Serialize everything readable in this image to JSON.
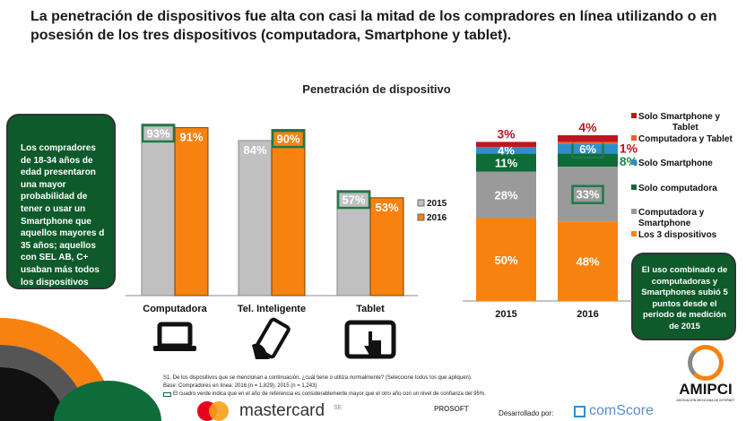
{
  "title": "La penetración de dispositivos fue alta con casi la mitad de los compradores en línea utilizando o en posesión de los tres dispositivos (computadora, Smartphone y tablet).",
  "left_note": "Los compradores de 18-34  años de edad presentaron una mayor probabilidad de tener o usar un Smartphone que aquellos mayores d 35 años; aquellos con SEL AB, C+ usaban más todos los dispositivos que sus contrapartes.",
  "right_note": "El uso combinado de computadoras y Smartphones subió 5 puntos  desde el periodo de medición de 2015",
  "footnotes": {
    "q": "S1. De los dispositivos que se mencionan a continuación, ¿cuál tiene o utiliza normalmente? (Seleccione todos los que apliquen).",
    "base": "Base: Compradores en línea: 2016 (n = 1,829), 2015 (n = 1,243)",
    "legend": "El cuadro verde indica que en el año de referencia es considerablemente mayor que el otro año con un nivel de confianza del 95%."
  },
  "logos": {
    "mastercard": "mastercard",
    "se": "SE",
    "prosoft": "PROSOFT",
    "dev": "Desarrollado por:",
    "comscore": "comScore",
    "amipci": "AMIPCI",
    "amipci_sub": "ASOCIACIÓN MEXICANA DE INTERNET"
  },
  "chart_data": [
    {
      "type": "bar",
      "title": "Penetración de dispositivo",
      "categories": [
        "Computadora",
        "Tel. Inteligente",
        "Tablet"
      ],
      "ylim": [
        0,
        100
      ],
      "legend": "right",
      "series": [
        {
          "name": "2015",
          "color": "#c0c0c0",
          "values": [
            93,
            84,
            57
          ],
          "significant": [
            true,
            false,
            true
          ]
        },
        {
          "name": "2016",
          "color": "#f7820f",
          "values": [
            91,
            90,
            53
          ],
          "significant": [
            false,
            true,
            false
          ]
        }
      ],
      "icons": [
        "laptop-icon",
        "smartphone-icon",
        "tablet-touch-icon"
      ]
    },
    {
      "type": "bar",
      "stacked": true,
      "categories": [
        "2015",
        "2016"
      ],
      "ylim": [
        0,
        100
      ],
      "legend": "right",
      "series": [
        {
          "name": "Los 3 dispositivos",
          "color": "#f7820f",
          "values": [
            50,
            48
          ],
          "significant": [
            false,
            false
          ]
        },
        {
          "name": "Computadora y Smartphone",
          "color": "#9a9a9a",
          "values": [
            28,
            33
          ],
          "significant": [
            false,
            true
          ]
        },
        {
          "name": "Solo computadora",
          "color": "#0f6b37",
          "values": [
            11,
            8
          ],
          "significant": [
            false,
            false
          ]
        },
        {
          "name": "Solo Smartphone",
          "color": "#2f8fca",
          "values": [
            4,
            6
          ],
          "significant": [
            false,
            true
          ]
        },
        {
          "name": "Computadora y Tablet",
          "color": "#e8602c",
          "values": [
            0,
            1
          ],
          "significant": [
            false,
            false
          ]
        },
        {
          "name": "Solo Smartphone y Tablet",
          "color": "#c0141e",
          "values": [
            3,
            4
          ],
          "significant": [
            false,
            false
          ]
        }
      ]
    }
  ]
}
